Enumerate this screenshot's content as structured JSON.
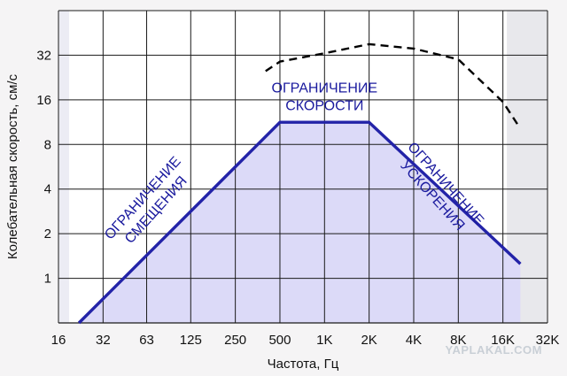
{
  "chart_data": {
    "type": "line",
    "title": "",
    "xlabel": "Частота, Гц",
    "ylabel": "Колебательная скорость, см/с",
    "x_scale": "log2",
    "y_scale": "log2",
    "x_tick_labels": [
      "16",
      "32",
      "63",
      "125",
      "250",
      "500",
      "1K",
      "2K",
      "4K",
      "8K",
      "16K",
      "32K"
    ],
    "x_tick_values": [
      16,
      32,
      63,
      125,
      250,
      500,
      1000,
      2000,
      4000,
      8000,
      16000,
      32000
    ],
    "y_tick_labels": [
      "1",
      "2",
      "4",
      "8",
      "16",
      "32"
    ],
    "y_tick_values": [
      1,
      2,
      4,
      8,
      16,
      32
    ],
    "xlim": [
      16,
      32000
    ],
    "ylim": [
      0.5,
      64
    ],
    "grid": true,
    "series": [
      {
        "style": "solid-area",
        "color": "#2323a8",
        "fill": "#dcdaf8",
        "points": [
          [
            22,
            0.5
          ],
          [
            500,
            11.3
          ],
          [
            2000,
            11.3
          ],
          [
            21000,
            1.25
          ]
        ]
      },
      {
        "style": "dashed",
        "color": "#000000",
        "points": [
          [
            400,
            25
          ],
          [
            500,
            29
          ],
          [
            1000,
            33
          ],
          [
            2000,
            38
          ],
          [
            4000,
            35.5
          ],
          [
            8000,
            30
          ],
          [
            16000,
            15.5
          ],
          [
            20000,
            11
          ]
        ]
      }
    ],
    "annotations": [
      {
        "lines": [
          "ОГРАНИЧЕНИЕ",
          "СМЕЩЕНИЯ"
        ],
        "x": 65,
        "y": 3.2,
        "rotation": -48
      },
      {
        "lines": [
          "ОГРАНИЧЕНИЕ",
          "СКОРОСТИ"
        ],
        "x": 1000,
        "y": 17,
        "rotation": 0
      },
      {
        "lines": [
          "ОГРАНИЧЕНИЕ",
          "УСКОРЕНИЯ"
        ],
        "x": 6000,
        "y": 4,
        "rotation": 48
      }
    ]
  },
  "watermark": "YAPLAKAL.COM"
}
